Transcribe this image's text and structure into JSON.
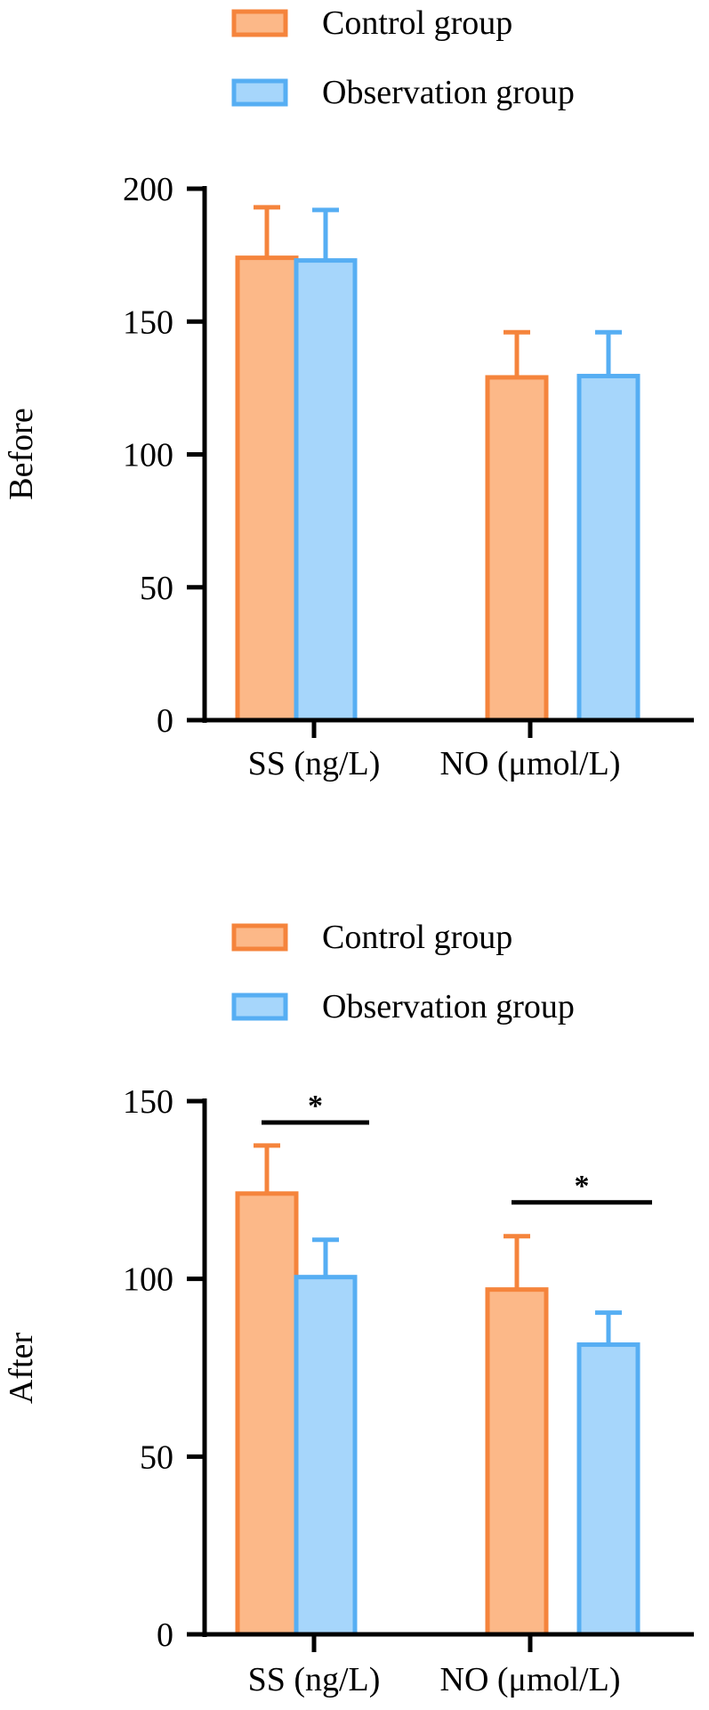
{
  "colors": {
    "control_stroke": "#F5843C",
    "control_fill": "#FCB888",
    "observation_stroke": "#56AEF3",
    "observation_fill": "#A6D6FB",
    "axis": "#000000"
  },
  "chart_data": [
    {
      "type": "bar",
      "title": "",
      "ylabel": "Before",
      "xlabel": "",
      "categories": [
        "SS (ng/L)",
        "NO (μmol/L)"
      ],
      "ylim": [
        0,
        200
      ],
      "yticks": [
        0,
        50,
        100,
        150,
        200
      ],
      "legend": {
        "position": "top",
        "entries": [
          "Control group",
          "Observation group"
        ]
      },
      "series": [
        {
          "name": "Control group",
          "values": [
            174,
            129
          ],
          "errors": [
            19,
            17
          ]
        },
        {
          "name": "Observation group",
          "values": [
            173,
            129.5
          ],
          "errors": [
            19,
            16.5
          ]
        }
      ],
      "significance": []
    },
    {
      "type": "bar",
      "title": "",
      "ylabel": "After",
      "xlabel": "",
      "categories": [
        "SS (ng/L)",
        "NO (μmol/L)"
      ],
      "ylim": [
        0,
        150
      ],
      "yticks": [
        0,
        50,
        100,
        150
      ],
      "legend": {
        "position": "top",
        "entries": [
          "Control group",
          "Observation group"
        ]
      },
      "series": [
        {
          "name": "Control group",
          "values": [
            124,
            97
          ],
          "errors": [
            13.5,
            15
          ]
        },
        {
          "name": "Observation group",
          "values": [
            100.5,
            81.5
          ],
          "errors": [
            10.5,
            9
          ]
        }
      ],
      "significance": [
        {
          "category": "SS (ng/L)",
          "label": "*",
          "y": 144
        },
        {
          "category": "NO (μmol/L)",
          "label": "*",
          "y": 121.5
        }
      ]
    }
  ]
}
